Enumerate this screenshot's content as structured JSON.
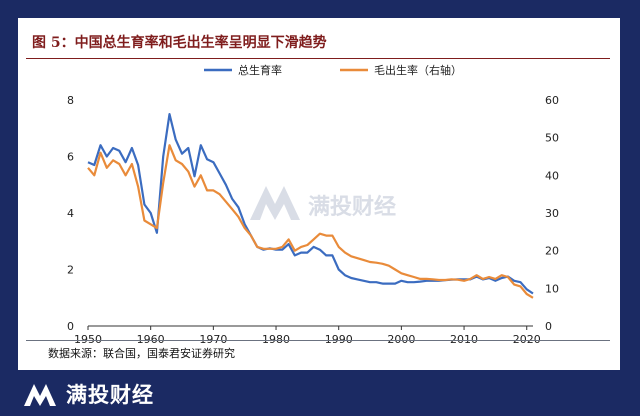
{
  "chart_data": {
    "type": "line",
    "title": "图 5：中国总生育率和毛出生率呈明显下滑趋势",
    "x_ticks": [
      "1950",
      "1960",
      "1970",
      "1980",
      "1990",
      "2000",
      "2010",
      "2020"
    ],
    "y_left_ticks": [
      "0",
      "2",
      "4",
      "6",
      "8"
    ],
    "y_right_ticks": [
      "0",
      "10",
      "20",
      "30",
      "40",
      "50",
      "60"
    ],
    "ylim_left": [
      0,
      8
    ],
    "ylim_right": [
      0,
      60
    ],
    "xlim": [
      1950,
      2021
    ],
    "grid": false,
    "legend_position": "top-center",
    "series": [
      {
        "name": "总生育率",
        "axis": "left",
        "color": "#3b6cc0",
        "points": [
          [
            1950,
            5.8
          ],
          [
            1951,
            5.7
          ],
          [
            1952,
            6.4
          ],
          [
            1953,
            6.0
          ],
          [
            1954,
            6.3
          ],
          [
            1955,
            6.2
          ],
          [
            1956,
            5.8
          ],
          [
            1957,
            6.3
          ],
          [
            1958,
            5.7
          ],
          [
            1959,
            4.3
          ],
          [
            1960,
            4.0
          ],
          [
            1961,
            3.3
          ],
          [
            1962,
            6.0
          ],
          [
            1963,
            7.5
          ],
          [
            1964,
            6.6
          ],
          [
            1965,
            6.1
          ],
          [
            1966,
            6.3
          ],
          [
            1967,
            5.3
          ],
          [
            1968,
            6.4
          ],
          [
            1969,
            5.9
          ],
          [
            1970,
            5.8
          ],
          [
            1971,
            5.4
          ],
          [
            1972,
            5.0
          ],
          [
            1973,
            4.5
          ],
          [
            1974,
            4.2
          ],
          [
            1975,
            3.6
          ],
          [
            1976,
            3.2
          ],
          [
            1977,
            2.8
          ],
          [
            1978,
            2.7
          ],
          [
            1979,
            2.75
          ],
          [
            1980,
            2.7
          ],
          [
            1981,
            2.7
          ],
          [
            1982,
            2.9
          ],
          [
            1983,
            2.5
          ],
          [
            1984,
            2.6
          ],
          [
            1985,
            2.6
          ],
          [
            1986,
            2.8
          ],
          [
            1987,
            2.7
          ],
          [
            1988,
            2.5
          ],
          [
            1989,
            2.5
          ],
          [
            1990,
            2.0
          ],
          [
            1991,
            1.8
          ],
          [
            1992,
            1.7
          ],
          [
            1993,
            1.65
          ],
          [
            1994,
            1.6
          ],
          [
            1995,
            1.55
          ],
          [
            1996,
            1.55
          ],
          [
            1997,
            1.5
          ],
          [
            1998,
            1.5
          ],
          [
            1999,
            1.5
          ],
          [
            2000,
            1.6
          ],
          [
            2001,
            1.55
          ],
          [
            2002,
            1.55
          ],
          [
            2003,
            1.57
          ],
          [
            2004,
            1.6
          ],
          [
            2005,
            1.6
          ],
          [
            2006,
            1.6
          ],
          [
            2007,
            1.62
          ],
          [
            2008,
            1.64
          ],
          [
            2009,
            1.65
          ],
          [
            2010,
            1.65
          ],
          [
            2011,
            1.65
          ],
          [
            2012,
            1.75
          ],
          [
            2013,
            1.65
          ],
          [
            2014,
            1.7
          ],
          [
            2015,
            1.6
          ],
          [
            2016,
            1.7
          ],
          [
            2017,
            1.75
          ],
          [
            2018,
            1.6
          ],
          [
            2019,
            1.55
          ],
          [
            2020,
            1.3
          ],
          [
            2021,
            1.15
          ]
        ]
      },
      {
        "name": "毛出生率（右轴）",
        "axis": "right",
        "color": "#e98b3a",
        "points": [
          [
            1950,
            42
          ],
          [
            1951,
            40
          ],
          [
            1952,
            46
          ],
          [
            1953,
            42
          ],
          [
            1954,
            44
          ],
          [
            1955,
            43
          ],
          [
            1956,
            40
          ],
          [
            1957,
            43
          ],
          [
            1958,
            37
          ],
          [
            1959,
            28
          ],
          [
            1960,
            27
          ],
          [
            1961,
            26
          ],
          [
            1962,
            38
          ],
          [
            1963,
            48
          ],
          [
            1964,
            44
          ],
          [
            1965,
            43
          ],
          [
            1966,
            41
          ],
          [
            1967,
            37
          ],
          [
            1968,
            40
          ],
          [
            1969,
            36
          ],
          [
            1970,
            36
          ],
          [
            1971,
            35
          ],
          [
            1972,
            33
          ],
          [
            1973,
            31
          ],
          [
            1974,
            29
          ],
          [
            1975,
            26
          ],
          [
            1976,
            24
          ],
          [
            1977,
            21
          ],
          [
            1978,
            20.5
          ],
          [
            1979,
            20.5
          ],
          [
            1980,
            20.5
          ],
          [
            1981,
            21
          ],
          [
            1982,
            23
          ],
          [
            1983,
            20
          ],
          [
            1984,
            21
          ],
          [
            1985,
            21.5
          ],
          [
            1986,
            23
          ],
          [
            1987,
            24.5
          ],
          [
            1988,
            24
          ],
          [
            1989,
            24
          ],
          [
            1990,
            21
          ],
          [
            1991,
            19.5
          ],
          [
            1992,
            18.5
          ],
          [
            1993,
            18
          ],
          [
            1994,
            17.5
          ],
          [
            1995,
            17
          ],
          [
            1996,
            16.8
          ],
          [
            1997,
            16.5
          ],
          [
            1998,
            16
          ],
          [
            1999,
            15
          ],
          [
            2000,
            14
          ],
          [
            2001,
            13.5
          ],
          [
            2002,
            13
          ],
          [
            2003,
            12.5
          ],
          [
            2004,
            12.5
          ],
          [
            2005,
            12.4
          ],
          [
            2006,
            12.2
          ],
          [
            2007,
            12.2
          ],
          [
            2008,
            12.4
          ],
          [
            2009,
            12.3
          ],
          [
            2010,
            12
          ],
          [
            2011,
            12.5
          ],
          [
            2012,
            13.5
          ],
          [
            2013,
            12.5
          ],
          [
            2014,
            13
          ],
          [
            2015,
            12.5
          ],
          [
            2016,
            13.5
          ],
          [
            2017,
            13
          ],
          [
            2018,
            11
          ],
          [
            2019,
            10.5
          ],
          [
            2020,
            8.5
          ],
          [
            2021,
            7.5
          ]
        ]
      }
    ],
    "source": "数据来源：联合国，国泰君安证券研究"
  },
  "watermark": {
    "text": "满投财经"
  },
  "footer": {
    "brand": "满投财经"
  }
}
